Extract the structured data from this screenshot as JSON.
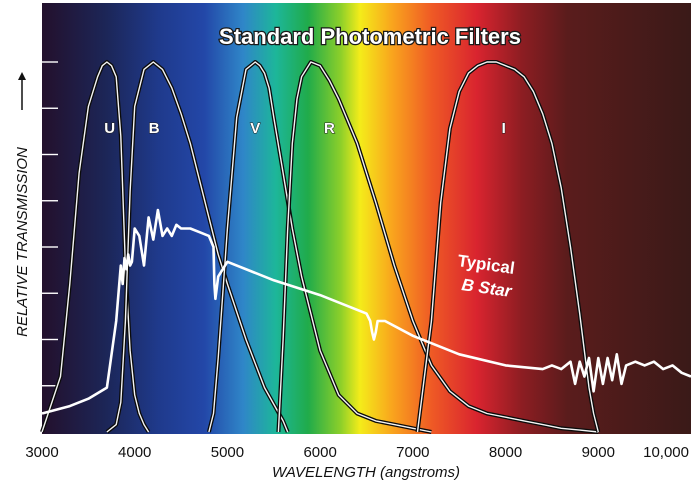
{
  "chart_data": {
    "type": "line",
    "title": "Standard Photometric Filters",
    "xlabel": "WAVELENGTH  (angstroms)",
    "ylabel": "RELATIVE  TRANSMISSION",
    "xlim": [
      3000,
      10000
    ],
    "ylim": [
      0,
      1
    ],
    "x_ticks": [
      3000,
      4000,
      5000,
      6000,
      7000,
      8000,
      9000,
      10000
    ],
    "x_tick_labels": [
      "3000",
      "4000",
      "5000",
      "6000",
      "7000",
      "8000",
      "9000",
      "10,000"
    ],
    "y_tick_count": 8,
    "grid": false,
    "background": "visible-spectrum gradient",
    "series": [
      {
        "name": "U",
        "x": [
          3000,
          3200,
          3300,
          3400,
          3500,
          3600,
          3650,
          3700,
          3750,
          3800,
          3850,
          3900,
          3950,
          4000,
          4050,
          4100,
          4150
        ],
        "y": [
          0.0,
          0.15,
          0.4,
          0.7,
          0.88,
          0.96,
          0.99,
          1.0,
          0.99,
          0.96,
          0.8,
          0.45,
          0.22,
          0.1,
          0.05,
          0.02,
          0.0
        ]
      },
      {
        "name": "B",
        "x": [
          3700,
          3800,
          3850,
          3900,
          3950,
          4000,
          4100,
          4200,
          4300,
          4400,
          4500,
          4600,
          4700,
          4800,
          4900,
          5000,
          5200,
          5400,
          5600,
          5650
        ],
        "y": [
          0.0,
          0.02,
          0.08,
          0.3,
          0.65,
          0.88,
          0.98,
          1.0,
          0.98,
          0.93,
          0.86,
          0.78,
          0.68,
          0.58,
          0.48,
          0.4,
          0.25,
          0.12,
          0.03,
          0.0
        ]
      },
      {
        "name": "V",
        "x": [
          4800,
          4850,
          4900,
          5000,
          5100,
          5200,
          5300,
          5350,
          5400,
          5450,
          5500,
          5600,
          5700,
          5800,
          6000,
          6200,
          6400,
          6600,
          6800,
          7000,
          7200
        ],
        "y": [
          0.0,
          0.05,
          0.2,
          0.55,
          0.85,
          0.98,
          1.0,
          0.99,
          0.97,
          0.93,
          0.85,
          0.7,
          0.55,
          0.42,
          0.22,
          0.1,
          0.05,
          0.03,
          0.02,
          0.01,
          0.0
        ]
      },
      {
        "name": "R",
        "x": [
          5550,
          5600,
          5650,
          5700,
          5750,
          5800,
          5900,
          6000,
          6100,
          6200,
          6400,
          6600,
          6800,
          7000,
          7200,
          7400,
          7600,
          7800,
          8000,
          8200,
          8400,
          8600,
          8800,
          9000
        ],
        "y": [
          0.0,
          0.25,
          0.55,
          0.78,
          0.9,
          0.96,
          1.0,
          0.99,
          0.95,
          0.9,
          0.78,
          0.62,
          0.45,
          0.3,
          0.18,
          0.11,
          0.07,
          0.05,
          0.04,
          0.03,
          0.02,
          0.01,
          0.005,
          0.0
        ]
      },
      {
        "name": "I",
        "x": [
          7050,
          7200,
          7300,
          7400,
          7500,
          7600,
          7700,
          7800,
          7900,
          8000,
          8100,
          8200,
          8300,
          8400,
          8500,
          8600,
          8700,
          8800,
          8900,
          8950,
          9000
        ],
        "y": [
          0.0,
          0.3,
          0.62,
          0.82,
          0.92,
          0.97,
          0.99,
          1.0,
          1.0,
          0.99,
          0.98,
          0.96,
          0.92,
          0.86,
          0.78,
          0.66,
          0.5,
          0.32,
          0.12,
          0.05,
          0.0
        ]
      },
      {
        "name": "Typical B Star",
        "label_lines": [
          "Typical",
          "B Star"
        ],
        "x": [
          3000,
          3300,
          3500,
          3700,
          3800,
          3850,
          3870,
          3890,
          3910,
          3930,
          3950,
          3970,
          4000,
          4050,
          4100,
          4150,
          4200,
          4250,
          4300,
          4350,
          4400,
          4450,
          4500,
          4600,
          4700,
          4800,
          4850,
          4860,
          4870,
          4900,
          5000,
          5500,
          6000,
          6500,
          6540,
          6560,
          6580,
          6600,
          6620,
          6700,
          7000,
          7500,
          8000,
          8400,
          8500,
          8600,
          8700,
          8750,
          8800,
          8850,
          8900,
          8950,
          9000,
          9050,
          9100,
          9150,
          9200,
          9250,
          9300,
          9400,
          9500,
          9600,
          9700,
          9800,
          9900,
          10000
        ],
        "y": [
          0.05,
          0.07,
          0.09,
          0.12,
          0.3,
          0.45,
          0.4,
          0.47,
          0.44,
          0.48,
          0.45,
          0.46,
          0.55,
          0.53,
          0.45,
          0.58,
          0.52,
          0.6,
          0.53,
          0.55,
          0.53,
          0.56,
          0.55,
          0.55,
          0.54,
          0.53,
          0.5,
          0.4,
          0.36,
          0.42,
          0.46,
          0.41,
          0.37,
          0.32,
          0.3,
          0.27,
          0.25,
          0.27,
          0.3,
          0.3,
          0.26,
          0.21,
          0.18,
          0.17,
          0.18,
          0.17,
          0.19,
          0.13,
          0.19,
          0.15,
          0.2,
          0.11,
          0.2,
          0.13,
          0.2,
          0.14,
          0.21,
          0.13,
          0.18,
          0.19,
          0.18,
          0.19,
          0.17,
          0.18,
          0.16,
          0.15
        ]
      }
    ]
  }
}
